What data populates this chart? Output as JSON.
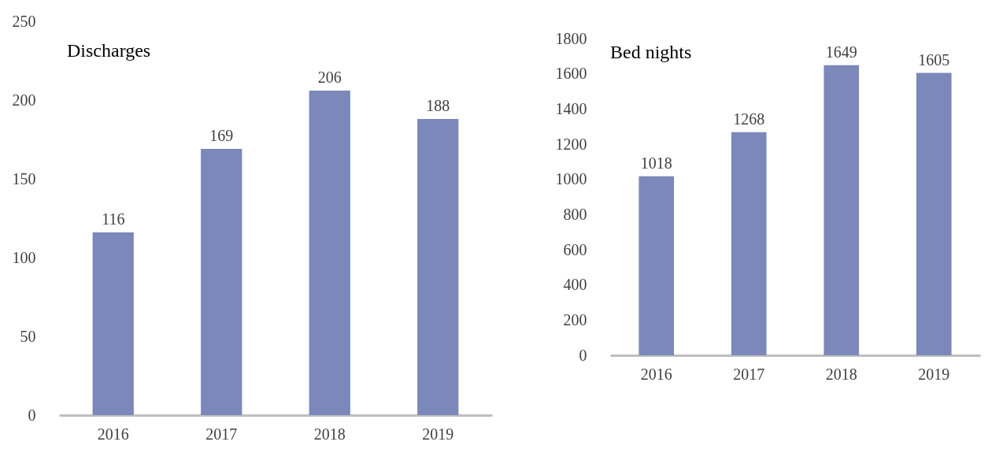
{
  "chart_data": [
    {
      "type": "bar",
      "title": "Discharges",
      "categories": [
        "2016",
        "2017",
        "2018",
        "2019"
      ],
      "values": [
        116,
        169,
        206,
        188
      ],
      "color": "#7b88b9",
      "ylim": [
        0,
        250
      ],
      "yticks": [
        0,
        50,
        100,
        150,
        200,
        250
      ],
      "data_labels": true,
      "grid": false
    },
    {
      "type": "bar",
      "title": "Bed nights",
      "categories": [
        "2016",
        "2017",
        "2018",
        "2019"
      ],
      "values": [
        1018,
        1268,
        1649,
        1605
      ],
      "color": "#7b88b9",
      "ylim": [
        0,
        1800
      ],
      "yticks": [
        0,
        200,
        400,
        600,
        800,
        1000,
        1200,
        1400,
        1600,
        1800
      ],
      "data_labels": true,
      "grid": false
    }
  ]
}
